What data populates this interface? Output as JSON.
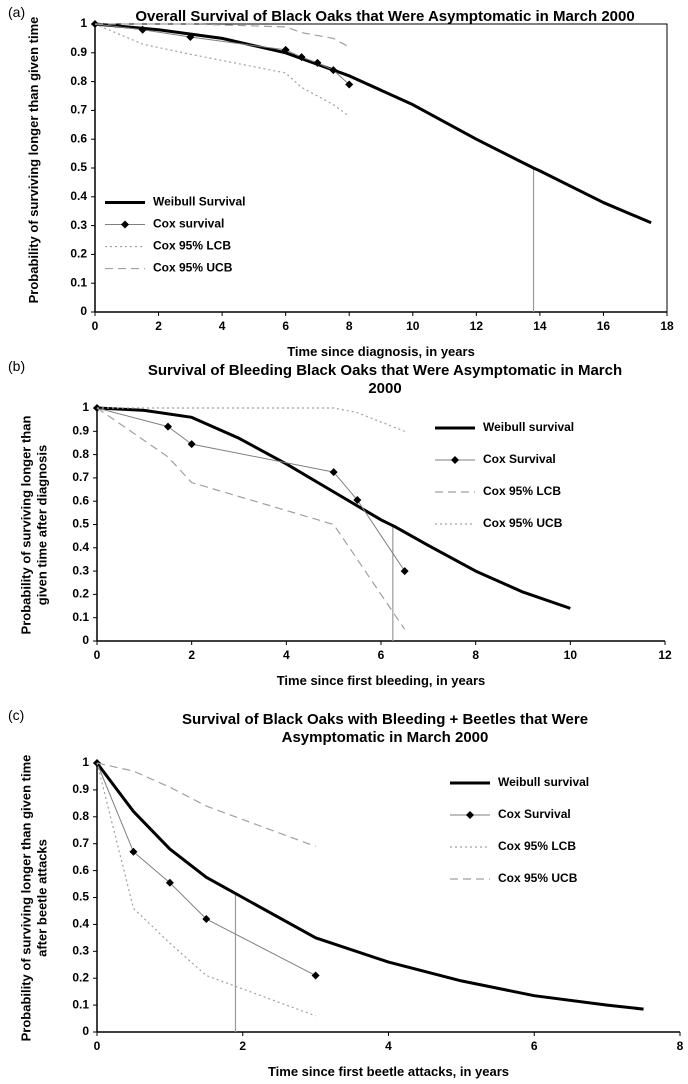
{
  "chart_data": [
    {
      "type": "line",
      "panel_label": "(a)",
      "title": "Overall Survival of Black Oaks that Were Asymptomatic in March 2000",
      "x_label": "Time since diagnosis, in years",
      "y_label": "Probability of surviving longer than given time",
      "xlim": [
        0,
        18
      ],
      "xticks": [
        0,
        2,
        4,
        6,
        8,
        10,
        12,
        14,
        16,
        18
      ],
      "ylim": [
        0,
        1
      ],
      "yticks": [
        0,
        0.1,
        0.2,
        0.3,
        0.4,
        0.5,
        0.6,
        0.7,
        0.8,
        0.9,
        1
      ],
      "frame": true,
      "legend": "lower left",
      "vline_x": 13.8,
      "series": [
        {
          "name": "Weibull Survival",
          "color": "#000000",
          "width": 3,
          "x": [
            0,
            2,
            4,
            6,
            8,
            10,
            12,
            13.8,
            14,
            16,
            17.5
          ],
          "values": [
            1,
            0.98,
            0.95,
            0.9,
            0.82,
            0.72,
            0.6,
            0.5,
            0.49,
            0.38,
            0.31
          ]
        },
        {
          "name": "Cox survival",
          "color": "#7f7f7f",
          "width": 1,
          "marker": "diamond",
          "marker_color": "#000000",
          "x": [
            0,
            1.5,
            3,
            6,
            6.5,
            7,
            7.5,
            8
          ],
          "values": [
            1,
            0.98,
            0.955,
            0.91,
            0.885,
            0.865,
            0.84,
            0.79
          ]
        },
        {
          "name": "Cox 95% LCB",
          "color": "#a0a0a0",
          "width": 1.2,
          "dash": "2,3",
          "x": [
            0,
            1.5,
            3,
            6,
            6.5,
            7,
            7.5,
            8
          ],
          "values": [
            1,
            0.93,
            0.895,
            0.83,
            0.78,
            0.75,
            0.72,
            0.68
          ]
        },
        {
          "name": "Cox 95% UCB",
          "color": "#a0a0a0",
          "width": 1.2,
          "dash": "8,5",
          "x": [
            0,
            1.5,
            3,
            6,
            6.5,
            7,
            7.5,
            8
          ],
          "values": [
            1,
            1,
            1,
            0.99,
            0.97,
            0.96,
            0.95,
            0.92
          ]
        }
      ]
    },
    {
      "type": "line",
      "panel_label": "(b)",
      "title": "Survival of Bleeding Black Oaks that Were Asymptomatic in March 2000",
      "x_label": "Time since first bleeding, in years",
      "y_label": "Probability of surviving longer than given time after diagnosis",
      "xlim": [
        0,
        12
      ],
      "xticks": [
        0,
        2,
        4,
        6,
        8,
        10,
        12
      ],
      "ylim": [
        0,
        1
      ],
      "yticks": [
        0,
        0.1,
        0.2,
        0.3,
        0.4,
        0.5,
        0.6,
        0.7,
        0.8,
        0.9,
        1
      ],
      "frame": false,
      "legend": "upper right",
      "vline_x": 6.25,
      "series": [
        {
          "name": "Weibull survival",
          "color": "#000000",
          "width": 3,
          "x": [
            0,
            1,
            2,
            3,
            4,
            5,
            6,
            6.3,
            7,
            8,
            9,
            10
          ],
          "values": [
            1,
            0.99,
            0.96,
            0.87,
            0.76,
            0.64,
            0.52,
            0.49,
            0.41,
            0.3,
            0.21,
            0.14
          ]
        },
        {
          "name": "Cox Survival",
          "color": "#7f7f7f",
          "width": 1,
          "marker": "diamond",
          "marker_color": "#000000",
          "x": [
            0,
            1.5,
            2,
            5,
            5.5,
            6.5
          ],
          "values": [
            1,
            0.92,
            0.845,
            0.725,
            0.605,
            0.3
          ]
        },
        {
          "name": "Cox 95% LCB",
          "color": "#a0a0a0",
          "width": 1.2,
          "dash": "8,5",
          "x": [
            0,
            1.5,
            2,
            5,
            5.5,
            6.5
          ],
          "values": [
            1,
            0.79,
            0.68,
            0.5,
            0.35,
            0.05
          ]
        },
        {
          "name": "Cox 95% UCB",
          "color": "#a0a0a0",
          "width": 1.2,
          "dash": "2,3",
          "x": [
            0,
            1.5,
            2,
            5,
            5.5,
            6.5
          ],
          "values": [
            1,
            1,
            1,
            1,
            0.98,
            0.9
          ]
        }
      ]
    },
    {
      "type": "line",
      "panel_label": "(c)",
      "title": "Survival of Black Oaks with Bleeding + Beetles that Were Asymptomatic in March 2000",
      "x_label": "Time since first beetle attacks, in years",
      "y_label": "Probability of surviving longer than given time after beetle attacks",
      "xlim": [
        0,
        8
      ],
      "xticks": [
        0,
        2,
        4,
        6,
        8
      ],
      "ylim": [
        0,
        1
      ],
      "yticks": [
        0,
        0.1,
        0.2,
        0.3,
        0.4,
        0.5,
        0.6,
        0.7,
        0.8,
        0.9,
        1
      ],
      "frame": false,
      "legend": "upper right",
      "vline_x": 1.9,
      "series": [
        {
          "name": "Weibull survival",
          "color": "#000000",
          "width": 3,
          "x": [
            0,
            0.5,
            1,
            1.5,
            2,
            3,
            4,
            5,
            6,
            7,
            7.5
          ],
          "values": [
            1,
            0.82,
            0.68,
            0.575,
            0.5,
            0.35,
            0.26,
            0.19,
            0.135,
            0.1,
            0.085
          ]
        },
        {
          "name": "Cox Survival",
          "color": "#7f7f7f",
          "width": 1,
          "marker": "diamond",
          "marker_color": "#000000",
          "x": [
            0,
            0.5,
            1,
            1.5,
            3
          ],
          "values": [
            1,
            0.67,
            0.555,
            0.42,
            0.21
          ]
        },
        {
          "name": "Cox 95% LCB",
          "color": "#a0a0a0",
          "width": 1.2,
          "dash": "2,3",
          "x": [
            0,
            0.5,
            1,
            1.5,
            3
          ],
          "values": [
            1,
            0.46,
            0.33,
            0.21,
            0.06
          ]
        },
        {
          "name": "Cox 95% UCB",
          "color": "#a0a0a0",
          "width": 1.2,
          "dash": "8,5",
          "x": [
            0,
            0.5,
            1,
            1.5,
            3
          ],
          "values": [
            1,
            0.97,
            0.91,
            0.84,
            0.69
          ]
        }
      ]
    }
  ]
}
